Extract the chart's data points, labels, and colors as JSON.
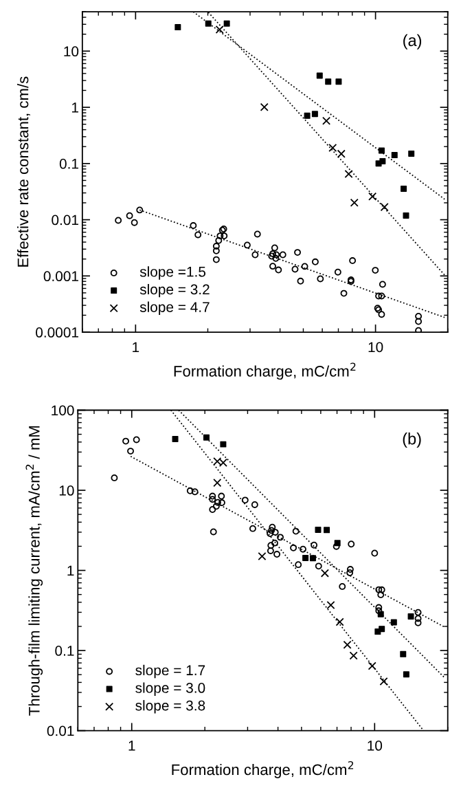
{
  "chart_data": [
    {
      "type": "scatter",
      "xlabel": "Formation charge, mC/cm$^{2}$",
      "ylabel": "Effective rate constant, cm/s",
      "annotations": [
        "(a)"
      ],
      "log": "xy",
      "xlim": [
        0.6,
        20
      ],
      "xticks": [
        1,
        10
      ],
      "ylim": [
        0.0001,
        50
      ],
      "yticks": [
        0.0001,
        0.001,
        0.01,
        0.1,
        1,
        10
      ],
      "grid": false,
      "legend": "bottom left",
      "series": [
        {
          "name": "slope =1.5",
          "marker": "circle",
          "color": "#000000",
          "x": [
            0.847,
            0.944,
            0.989,
            1.04,
            1.74,
            1.82,
            2.17,
            2.17,
            2.17,
            2.22,
            2.25,
            2.3,
            2.33,
            2.34,
            2.92,
            3.22,
            3.15,
            3.8,
            3.73,
            3.86,
            3.69,
            4.11,
            3.84,
            3.73,
            3.94,
            4.73,
            4.62,
            5.07,
            4.87,
            5.61,
            5.89,
            6.97,
            7.38,
            7.9,
            7.9,
            8.02,
            9.98,
            10.7,
            10.3,
            10.6,
            10.2,
            10.3,
            10.6,
            15.1,
            15.1,
            15.1
          ],
          "values": [
            0.00975,
            0.0118,
            0.0089,
            0.0149,
            0.00787,
            0.0054,
            0.00195,
            0.0028,
            0.00338,
            0.00427,
            0.00515,
            0.00652,
            0.00685,
            0.00515,
            0.00353,
            0.00555,
            0.00238,
            0.00316,
            0.00248,
            0.00238,
            0.00225,
            0.00238,
            0.00205,
            0.00149,
            0.00128,
            0.00262,
            0.00132,
            0.00148,
            0.00081,
            0.00178,
            0.00089,
            0.00117,
            0.00049,
            0.00085,
            0.0008,
            0.00187,
            0.00126,
            0.00071,
            0.00044,
            0.00044,
            0.000267,
            0.00025,
            0.000207,
            0.000192,
            0.000155,
            0.000107
          ]
        },
        {
          "name": "slope = 3.2",
          "marker": "square",
          "color": "#000000",
          "x": [
            1.5,
            2.01,
            2.4,
            5.85,
            6.35,
            7.02,
            5.19,
            5.59,
            10.6,
            10.3,
            10.7,
            12.0,
            14.1,
            13.1,
            13.4
          ],
          "values": [
            26.6,
            31,
            31,
            3.66,
            2.87,
            2.87,
            0.708,
            0.762,
            0.17,
            0.1,
            0.11,
            0.141,
            0.15,
            0.0356,
            0.0119
          ]
        },
        {
          "name": "slope = 4.7",
          "marker": "cross",
          "color": "#000000",
          "x": [
            2.24,
            2.4,
            3.44,
            6.24,
            6.63,
            7.2,
            7.73,
            8.16,
            9.71,
            10.9
          ],
          "values": [
            24.2,
            null,
            1.01,
            0.575,
            0.19,
            0.149,
            0.0652,
            0.0201,
            0.0259,
            0.0168
          ]
        },
        {
          "type": "line",
          "marker": "none",
          "line_style": "dotted",
          "color": "#000000",
          "x": [
            1.04,
            19.4
          ],
          "values": [
            0.0149,
            0.000183
          ]
        },
        {
          "type": "line",
          "marker": "none",
          "line_style": "dotted",
          "color": "#000000",
          "x": [
            1.74,
            19.4
          ],
          "values": [
            50,
            0.0232
          ]
        },
        {
          "type": "line",
          "marker": "none",
          "line_style": "dotted",
          "color": "#000000",
          "x": [
            2.01,
            19.4
          ],
          "values": [
            49,
            0.00104
          ]
        }
      ]
    },
    {
      "type": "scatter",
      "xlabel": "Formation charge, mC/cm$^{2}$",
      "ylabel": "Through-film limiting current, mA/cm$^{2}$ / mM",
      "annotations": [
        "(b)"
      ],
      "log": "xy",
      "xlim": [
        0.6,
        20
      ],
      "xticks": [
        1,
        10
      ],
      "ylim": [
        0.01,
        100
      ],
      "yticks": [
        0.01,
        0.1,
        1,
        10,
        100
      ],
      "grid": false,
      "legend": "bottom left",
      "series": [
        {
          "name": "slope = 1.7",
          "marker": "circle",
          "color": "#000000",
          "x": [
            0.848,
            0.945,
            0.989,
            1.046,
            1.74,
            1.82,
            2.17,
            2.15,
            2.15,
            2.15,
            2.23,
            2.26,
            2.34,
            2.35,
            2.93,
            3.21,
            3.15,
            3.79,
            3.76,
            3.71,
            3.9,
            4.09,
            3.88,
            3.74,
            3.73,
            3.96,
            4.63,
            4.74,
            5.07,
            5.63,
            4.85,
            5.88,
            6.96,
            8.01,
            7.36,
            7.94,
            7.9,
            10.0,
            10.4,
            10.7,
            10.6,
            10.4,
            10.4,
            10.6,
            15.1,
            15.1,
            15.1
          ],
          "values": [
            14.3,
            41,
            30.8,
            42.8,
            9.85,
            9.57,
            3.03,
            5.75,
            8.45,
            7.7,
            6.32,
            7.05,
            8.45,
            7.0,
            7.53,
            6.61,
            3.33,
            3.46,
            3.15,
            2.88,
            2.99,
            2.59,
            2.2,
            2.05,
            1.76,
            1.59,
            1.91,
            3.08,
            1.84,
            2.07,
            1.18,
            1.13,
            1.99,
            2.13,
            0.63,
            1.03,
            0.935,
            1.64,
            0.574,
            0.572,
            0.497,
            0.344,
            0.313,
            null,
            0.299,
            0.251,
            0.222
          ]
        },
        {
          "name": "slope = 3.0",
          "marker": "square",
          "color": "#000000",
          "x": [
            1.51,
            2.03,
            2.38,
            5.85,
            6.35,
            7.03,
            5.19,
            5.57,
            10.3,
            10.7,
            10.6,
            12.0,
            14.1,
            13.1,
            13.5
          ],
          "values": [
            43.7,
            45.6,
            37.5,
            3.21,
            3.19,
            2.19,
            1.43,
            1.42,
            0.172,
            0.186,
            0.284,
            0.225,
            0.266,
            0.0901,
            0.0504
          ]
        },
        {
          "name": "slope = 3.8",
          "marker": "cross",
          "color": "#000000",
          "x": [
            2.25,
            2.25,
            2.38,
            3.44,
            6.24,
            6.6,
            7.19,
            7.72,
            8.19,
            9.77,
            10.9
          ],
          "values": [
            12.4,
            22.9,
            22.1,
            1.5,
            0.923,
            0.369,
            0.227,
            0.118,
            0.0863,
            0.0641,
            0.0411
          ]
        },
        {
          "type": "line",
          "marker": "none",
          "line_style": "dotted",
          "color": "#000000",
          "x": [
            0.99,
            19.4
          ],
          "values": [
            26.5,
            0.196
          ]
        },
        {
          "type": "line",
          "marker": "none",
          "line_style": "dotted",
          "color": "#000000",
          "x": [
            1.56,
            19.4
          ],
          "values": [
            100,
            0.0458
          ]
        },
        {
          "type": "line",
          "marker": "none",
          "line_style": "dotted",
          "color": "#000000",
          "x": [
            1.45,
            15.9
          ],
          "values": [
            100,
            0.01
          ]
        }
      ]
    }
  ]
}
